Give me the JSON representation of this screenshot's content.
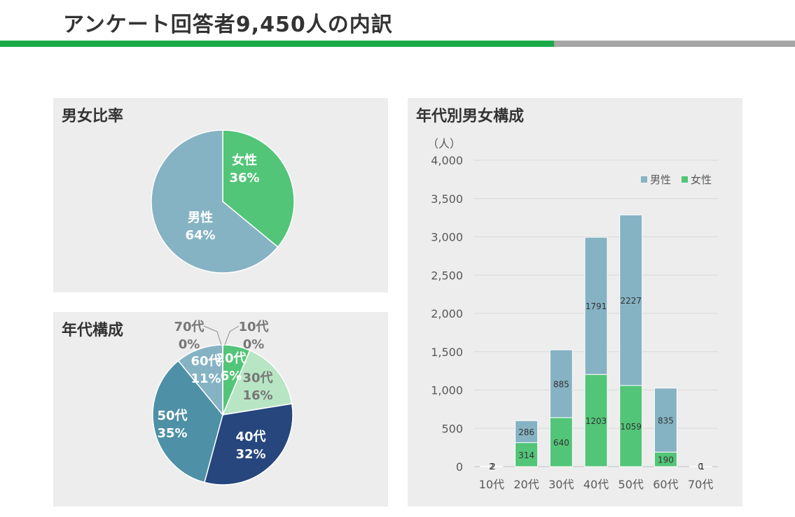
{
  "header": {
    "title": "アンケート回答者9,450人の内訳"
  },
  "colors": {
    "accent": "#1aaa49",
    "male": "#85b3c4",
    "female": "#52c578"
  },
  "panels": {
    "gender": {
      "title": "男女比率"
    },
    "age": {
      "title": "年代構成"
    },
    "stacked": {
      "title": "年代別男女構成"
    }
  },
  "chart_data": [
    {
      "type": "pie",
      "title": "男女比率",
      "slices": [
        {
          "label": "女性",
          "pct_label": "36%",
          "value": 36,
          "color": "#52c578"
        },
        {
          "label": "男性",
          "pct_label": "64%",
          "value": 64,
          "color": "#85b3c4"
        }
      ]
    },
    {
      "type": "pie",
      "title": "年代構成",
      "slices": [
        {
          "label": "10代",
          "pct_label": "0%",
          "value": 0.02,
          "color": "#52c578"
        },
        {
          "label": "20代",
          "pct_label": "6%",
          "value": 6.3,
          "color": "#52c578"
        },
        {
          "label": "30代",
          "pct_label": "16%",
          "value": 16.1,
          "color": "#b8e6c4"
        },
        {
          "label": "40代",
          "pct_label": "32%",
          "value": 31.7,
          "color": "#26467d"
        },
        {
          "label": "50代",
          "pct_label": "35%",
          "value": 34.8,
          "color": "#4e90a6"
        },
        {
          "label": "60代",
          "pct_label": "11%",
          "value": 10.9,
          "color": "#85b3c4"
        },
        {
          "label": "70代",
          "pct_label": "0%",
          "value": 0.02,
          "color": "#85b3c4"
        }
      ]
    },
    {
      "type": "bar",
      "stacked": true,
      "title": "年代別男女構成",
      "ylabel": "（人）",
      "categories": [
        "10代",
        "20代",
        "30代",
        "40代",
        "50代",
        "60代",
        "70代"
      ],
      "yticks": [
        "0",
        "500",
        "1,000",
        "1,500",
        "2,000",
        "2,500",
        "3,000",
        "3,500",
        "4,000"
      ],
      "ylim": [
        0,
        4000
      ],
      "legend": "top-right",
      "grid": true,
      "series": [
        {
          "name": "女性",
          "color": "#52c578",
          "values": [
            2,
            314,
            640,
            1203,
            1059,
            190,
            0
          ]
        },
        {
          "name": "男性",
          "color": "#85b3c4",
          "values": [
            2,
            286,
            885,
            1791,
            2227,
            835,
            1
          ]
        }
      ]
    }
  ]
}
